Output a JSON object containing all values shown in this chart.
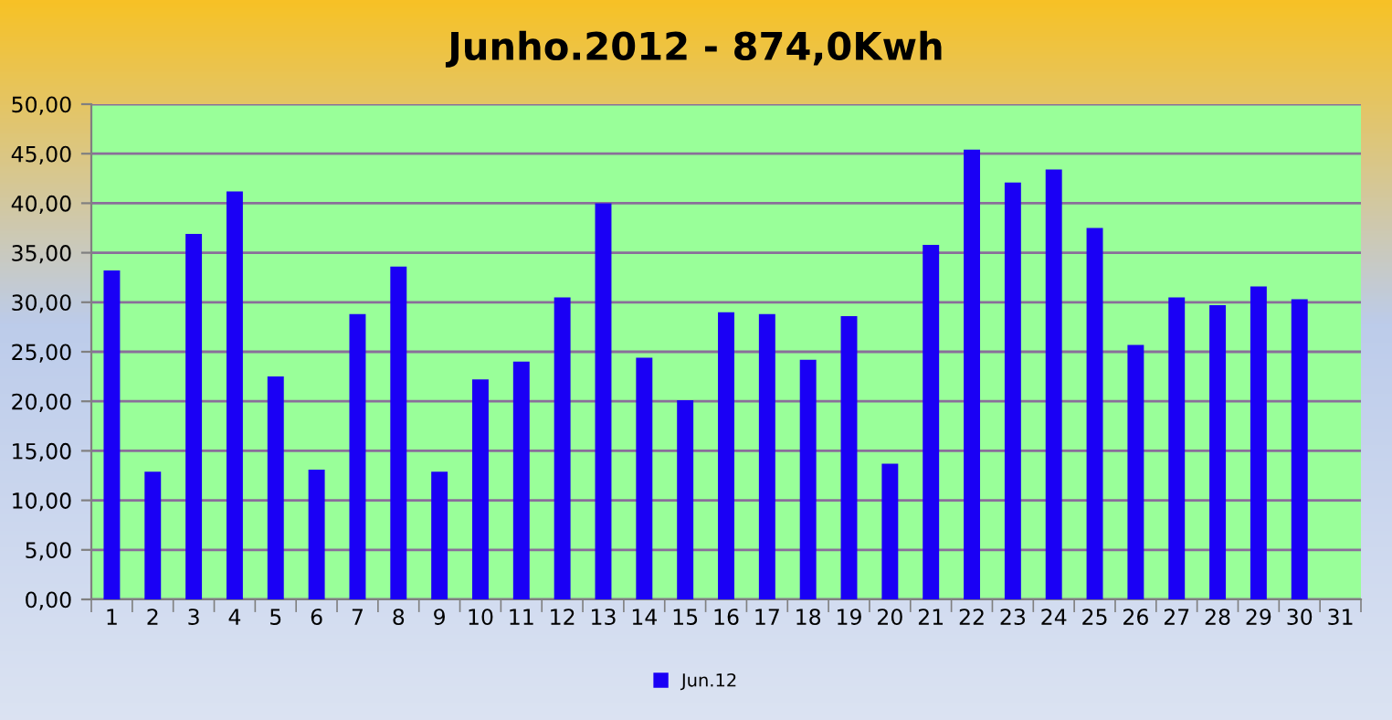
{
  "chart_data": {
    "type": "bar",
    "title": "Junho.2012 - 874,0Kwh",
    "categories": [
      "1",
      "2",
      "3",
      "4",
      "5",
      "6",
      "7",
      "8",
      "9",
      "10",
      "11",
      "12",
      "13",
      "14",
      "15",
      "16",
      "17",
      "18",
      "19",
      "20",
      "21",
      "22",
      "23",
      "24",
      "25",
      "26",
      "27",
      "28",
      "29",
      "30",
      "31"
    ],
    "series": [
      {
        "name": "Jun.12",
        "color": "#1a00f5",
        "values": [
          33.2,
          12.9,
          36.9,
          41.2,
          22.5,
          13.1,
          28.8,
          33.6,
          12.9,
          22.2,
          24.0,
          30.5,
          40.0,
          24.4,
          20.1,
          29.0,
          28.8,
          24.2,
          28.6,
          13.7,
          35.8,
          45.4,
          42.1,
          43.4,
          37.5,
          25.7,
          30.5,
          29.7,
          31.6,
          30.3,
          null
        ]
      }
    ],
    "ylim": [
      0,
      50
    ],
    "yticks": [
      {
        "value": 0,
        "label": "0,00"
      },
      {
        "value": 5,
        "label": "5,00"
      },
      {
        "value": 10,
        "label": "10,00"
      },
      {
        "value": 15,
        "label": "15,00"
      },
      {
        "value": 20,
        "label": "20,00"
      },
      {
        "value": 25,
        "label": "25,00"
      },
      {
        "value": 30,
        "label": "30,00"
      },
      {
        "value": 35,
        "label": "35,00"
      },
      {
        "value": 40,
        "label": "40,00"
      },
      {
        "value": 45,
        "label": "45,00"
      },
      {
        "value": 50,
        "label": "50,00"
      }
    ],
    "grid": "y",
    "legend": "bottom"
  }
}
